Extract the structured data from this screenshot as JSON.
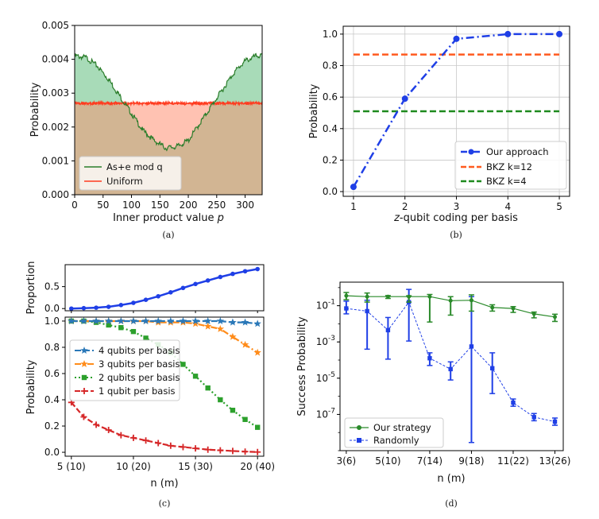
{
  "captions": [
    "(a)",
    "(b)",
    "(c)",
    "(d)"
  ],
  "chart_data": [
    {
      "id": "a",
      "type": "area",
      "xlabel": "Inner product value ",
      "xlabel_italic": "p",
      "ylabel": "Probability",
      "xlim": [
        0,
        330
      ],
      "ylim": [
        0,
        0.005
      ],
      "xticks": [
        0,
        50,
        100,
        150,
        200,
        250,
        300
      ],
      "yticks": [
        "0.000",
        "0.001",
        "0.002",
        "0.003",
        "0.004",
        "0.005"
      ],
      "legend_position": "lower-left",
      "series": [
        {
          "name": "As+e mod q",
          "color": "#2a7d2a",
          "x": [
            0,
            20,
            40,
            60,
            80,
            100,
            120,
            140,
            160,
            180,
            200,
            220,
            240,
            260,
            280,
            300,
            320,
            330
          ],
          "y": [
            0.0041,
            0.00405,
            0.0038,
            0.0034,
            0.0029,
            0.0024,
            0.0019,
            0.0016,
            0.00138,
            0.00142,
            0.0016,
            0.0021,
            0.0026,
            0.0031,
            0.0036,
            0.00395,
            0.0041,
            0.0041
          ]
        },
        {
          "name": "Uniform",
          "color": "#ff3b1f",
          "y_const": 0.0027
        }
      ],
      "fills": {
        "above_uniform": "#a8dbb8",
        "below_uniform": "#ffc2b2",
        "base": "#d2b593"
      }
    },
    {
      "id": "b",
      "type": "line",
      "xlabel_italic": "z",
      "xlabel": "-qubit coding per basis",
      "ylabel": "Probability",
      "xlim": [
        0.8,
        5.2
      ],
      "ylim": [
        -0.03,
        1.05
      ],
      "xticks": [
        1,
        2,
        3,
        4,
        5
      ],
      "yticks": [
        "0.0",
        "0.2",
        "0.4",
        "0.6",
        "0.8",
        "1.0"
      ],
      "grid": true,
      "legend_position": "lower-right",
      "series": [
        {
          "name": "Our approach",
          "color": "#1f3fe6",
          "x": [
            1,
            2,
            3,
            4,
            5
          ],
          "y": [
            0.03,
            0.59,
            0.97,
            1.0,
            1.0
          ]
        },
        {
          "name": "BKZ k=12",
          "color": "#ff5a1f",
          "y_const": 0.87
        },
        {
          "name": "BKZ k=4",
          "color": "#1e8a1e",
          "y_const": 0.51
        }
      ]
    },
    {
      "id": "c-top",
      "type": "line",
      "ylabel": "Proportion",
      "xlim": [
        4.5,
        20.5
      ],
      "ylim": [
        -0.05,
        1.0
      ],
      "yticks": [
        "0.0",
        "0.5"
      ],
      "series": [
        {
          "color": "#1f3fe6",
          "x": [
            5,
            6,
            7,
            8,
            9,
            10,
            11,
            12,
            13,
            14,
            15,
            16,
            17,
            18,
            19,
            20
          ],
          "y": [
            0.0,
            0.01,
            0.02,
            0.04,
            0.08,
            0.13,
            0.2,
            0.28,
            0.37,
            0.47,
            0.56,
            0.64,
            0.72,
            0.79,
            0.85,
            0.9
          ]
        }
      ]
    },
    {
      "id": "c",
      "type": "line",
      "xlabel": "n (m)",
      "ylabel": "Probability",
      "xlim": [
        4.5,
        20.5
      ],
      "ylim": [
        -0.03,
        1.03
      ],
      "xticks": [
        5,
        10,
        15,
        20
      ],
      "xtick_labels": [
        "5 (10)",
        "10 (20)",
        "15 (30)",
        "20 (40)"
      ],
      "yticks": [
        "0.0",
        "0.2",
        "0.4",
        "0.6",
        "0.8",
        "1.0"
      ],
      "legend_position": "center-left",
      "series": [
        {
          "name": "4 qubits per basis",
          "color": "#2a78b8",
          "marker": "star",
          "x": [
            5,
            6,
            7,
            8,
            9,
            10,
            11,
            12,
            13,
            14,
            15,
            16,
            17,
            18,
            19,
            20
          ],
          "y": [
            1.0,
            1.0,
            1.0,
            1.0,
            1.0,
            1.0,
            1.0,
            1.0,
            1.0,
            1.0,
            1.0,
            1.0,
            1.0,
            0.99,
            0.99,
            0.98
          ]
        },
        {
          "name": "3 qubits per basis",
          "color": "#ff8c1a",
          "marker": "star",
          "x": [
            5,
            6,
            7,
            8,
            9,
            10,
            11,
            12,
            13,
            14,
            15,
            16,
            17,
            18,
            19,
            20
          ],
          "y": [
            1.0,
            1.0,
            1.0,
            1.0,
            1.0,
            1.0,
            1.0,
            0.99,
            0.99,
            0.99,
            0.98,
            0.96,
            0.94,
            0.88,
            0.82,
            0.76
          ]
        },
        {
          "name": "2 qubits per basis",
          "color": "#2ca02c",
          "marker": "square",
          "x": [
            5,
            6,
            7,
            8,
            9,
            10,
            11,
            12,
            13,
            14,
            15,
            16,
            17,
            18,
            19,
            20
          ],
          "y": [
            1.0,
            1.0,
            0.99,
            0.97,
            0.95,
            0.92,
            0.87,
            0.82,
            0.76,
            0.67,
            0.58,
            0.49,
            0.4,
            0.32,
            0.25,
            0.19
          ]
        },
        {
          "name": "1 qubit per basis",
          "color": "#d62728",
          "marker": "plus",
          "x": [
            5,
            6,
            7,
            8,
            9,
            10,
            11,
            12,
            13,
            14,
            15,
            16,
            17,
            18,
            19,
            20
          ],
          "y": [
            0.38,
            0.27,
            0.21,
            0.17,
            0.13,
            0.11,
            0.09,
            0.07,
            0.05,
            0.04,
            0.03,
            0.02,
            0.015,
            0.01,
            0.005,
            0.002
          ]
        }
      ]
    },
    {
      "id": "d",
      "type": "line",
      "xlabel": "n (m)",
      "ylabel": "Success Probability",
      "yscale": "log",
      "xlim": [
        2.7,
        13.4
      ],
      "ylim_log10": [
        -9.0,
        0.3
      ],
      "xticks": [
        3,
        5,
        7,
        9,
        11,
        13
      ],
      "xtick_labels": [
        "3(6)",
        "5(10)",
        "7(14)",
        "9(18)",
        "11(22)",
        "13(26)"
      ],
      "yticks_log10": [
        -7,
        -5,
        -3,
        -1
      ],
      "ytick_labels": [
        "-7",
        "-5",
        "-3",
        "-1"
      ],
      "legend_position": "lower-left",
      "series": [
        {
          "name": "Our strategy",
          "color": "#2a8a2a",
          "marker": "circle",
          "x": [
            3,
            4,
            5,
            6,
            7,
            8,
            9,
            10,
            11,
            12,
            13
          ],
          "y_log10": [
            -0.45,
            -0.5,
            -0.5,
            -0.5,
            -0.5,
            -0.72,
            -0.7,
            -1.1,
            -1.15,
            -1.45,
            -1.62
          ],
          "err_low_log10": [
            0.22,
            0.3,
            0.1,
            0.3,
            1.4,
            0.8,
            0.6,
            0.2,
            0.22,
            0.22,
            0.25
          ],
          "err_high_log10": [
            0.18,
            0.2,
            0.06,
            0.05,
            0.12,
            0.22,
            0.3,
            0.15,
            0.1,
            0.1,
            0.15
          ]
        },
        {
          "name": "Randomly",
          "color": "#1f3fe6",
          "marker": "square",
          "dashed": true,
          "x": [
            3,
            4,
            5,
            6,
            7,
            8,
            9,
            10,
            11,
            12,
            13
          ],
          "y_log10": [
            -1.15,
            -1.3,
            -2.35,
            -0.8,
            -3.9,
            -4.5,
            -3.25,
            -4.45,
            -6.35,
            -7.15,
            -7.4
          ],
          "err_low_log10": [
            0.3,
            2.1,
            1.6,
            2.15,
            0.4,
            0.6,
            5.3,
            1.4,
            0.2,
            0.2,
            0.2
          ],
          "err_high_log10": [
            0.4,
            0.6,
            0.7,
            0.7,
            0.3,
            0.4,
            2.75,
            0.85,
            0.2,
            0.2,
            0.2
          ]
        }
      ]
    }
  ]
}
